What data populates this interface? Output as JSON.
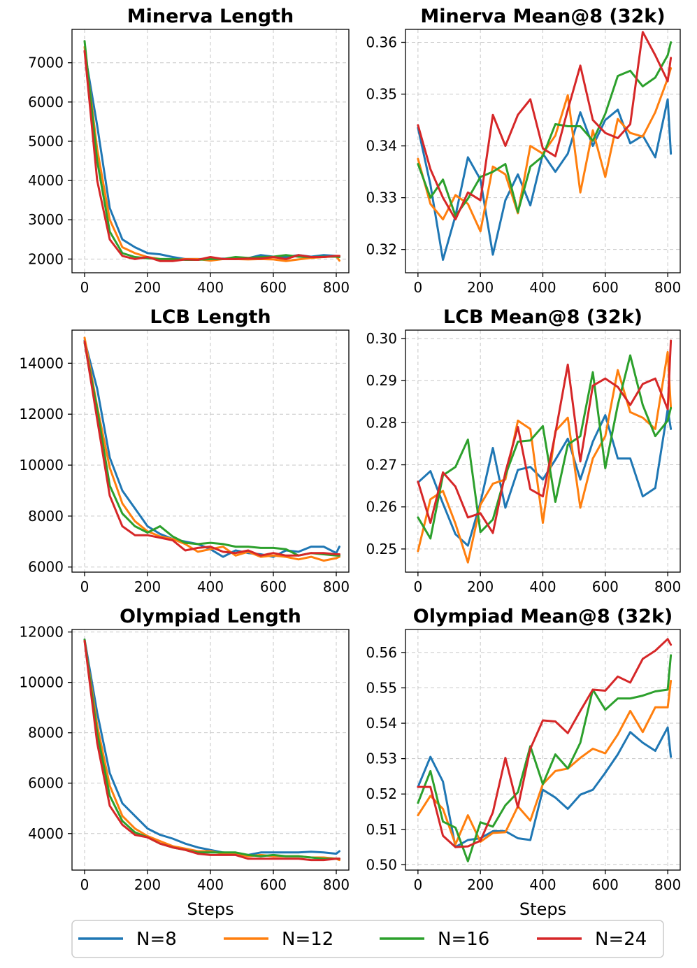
{
  "colors": {
    "N=8": "#1f77b4",
    "N=12": "#ff7f0e",
    "N=16": "#2ca02c",
    "N=24": "#d62728"
  },
  "legend": {
    "items": [
      "N=8",
      "N=12",
      "N=16",
      "N=24"
    ]
  },
  "chart_data": [
    {
      "type": "line",
      "title": "Minerva Length",
      "xlabel": "",
      "ylabel": "",
      "xlim": [
        -40,
        840
      ],
      "ylim": [
        1650,
        7850
      ],
      "xticks": [
        0,
        200,
        400,
        600,
        800
      ],
      "yticks": [
        2000,
        3000,
        4000,
        5000,
        6000,
        7000
      ],
      "grid": true,
      "x": [
        0,
        40,
        80,
        120,
        160,
        200,
        240,
        280,
        320,
        360,
        400,
        440,
        480,
        520,
        560,
        600,
        640,
        680,
        720,
        760,
        800,
        810
      ],
      "series": [
        {
          "name": "N=8",
          "values": [
            7300,
            5400,
            3300,
            2500,
            2300,
            2150,
            2120,
            2050,
            2000,
            2000,
            2000,
            2010,
            2000,
            2020,
            2100,
            2060,
            2050,
            2100,
            2060,
            2100,
            2080,
            2060
          ]
        },
        {
          "name": "N=12",
          "values": [
            7400,
            4800,
            3000,
            2300,
            2150,
            2050,
            2000,
            1980,
            2000,
            2000,
            1960,
            2000,
            2000,
            1990,
            2000,
            1990,
            1950,
            1990,
            2030,
            2050,
            2070,
            1960
          ]
        },
        {
          "name": "N=16",
          "values": [
            7550,
            4500,
            2700,
            2150,
            2050,
            2020,
            2000,
            2000,
            1980,
            1980,
            2000,
            2000,
            2050,
            2030,
            2050,
            2060,
            2100,
            2060,
            2050,
            2060,
            2060,
            2050
          ]
        },
        {
          "name": "N=24",
          "values": [
            7300,
            4000,
            2500,
            2080,
            2000,
            2050,
            1950,
            1950,
            1990,
            1980,
            2050,
            2000,
            2000,
            2010,
            2010,
            2050,
            2000,
            2100,
            2050,
            2050,
            2080,
            2080
          ]
        }
      ]
    },
    {
      "type": "line",
      "title": "Minerva Mean@8 (32k)",
      "xlabel": "",
      "ylabel": "",
      "xlim": [
        -40,
        840
      ],
      "ylim": [
        0.3155,
        0.3625
      ],
      "xticks": [
        0,
        200,
        400,
        600,
        800
      ],
      "yticks": [
        0.32,
        0.33,
        0.34,
        0.35,
        0.36
      ],
      "ytick_labels": [
        "0.32",
        "0.33",
        "0.34",
        "0.35",
        "0.36"
      ],
      "grid": true,
      "x": [
        0,
        40,
        80,
        120,
        160,
        200,
        240,
        280,
        320,
        360,
        400,
        440,
        480,
        520,
        560,
        600,
        640,
        680,
        720,
        760,
        800,
        810
      ],
      "series": [
        {
          "name": "N=8",
          "values": [
            0.3435,
            0.3325,
            0.318,
            0.3265,
            0.3378,
            0.3335,
            0.319,
            0.3295,
            0.3345,
            0.3285,
            0.3385,
            0.335,
            0.3385,
            0.3465,
            0.34,
            0.345,
            0.347,
            0.3405,
            0.342,
            0.3378,
            0.349,
            0.3385
          ]
        },
        {
          "name": "N=12",
          "values": [
            0.3375,
            0.3288,
            0.3258,
            0.3305,
            0.3288,
            0.3235,
            0.336,
            0.3345,
            0.327,
            0.34,
            0.3385,
            0.342,
            0.3498,
            0.331,
            0.343,
            0.334,
            0.3452,
            0.3425,
            0.3418,
            0.3465,
            0.353,
            0.355
          ]
        },
        {
          "name": "N=16",
          "values": [
            0.3365,
            0.33,
            0.3335,
            0.3265,
            0.3298,
            0.334,
            0.335,
            0.3365,
            0.3272,
            0.336,
            0.338,
            0.3442,
            0.3438,
            0.3438,
            0.341,
            0.3462,
            0.3535,
            0.3545,
            0.3515,
            0.3532,
            0.3575,
            0.36
          ]
        },
        {
          "name": "N=24",
          "values": [
            0.344,
            0.3355,
            0.33,
            0.3258,
            0.331,
            0.3295,
            0.346,
            0.34,
            0.346,
            0.349,
            0.3395,
            0.338,
            0.347,
            0.3555,
            0.345,
            0.3425,
            0.3415,
            0.3442,
            0.362,
            0.3575,
            0.3525,
            0.357
          ]
        }
      ]
    },
    {
      "type": "line",
      "title": "LCB Length",
      "xlabel": "",
      "ylabel": "",
      "xlim": [
        -40,
        840
      ],
      "ylim": [
        5800,
        15300
      ],
      "xticks": [
        0,
        200,
        400,
        600,
        800
      ],
      "yticks": [
        6000,
        8000,
        10000,
        12000,
        14000
      ],
      "grid": true,
      "x": [
        0,
        40,
        80,
        120,
        160,
        200,
        240,
        280,
        320,
        360,
        400,
        440,
        480,
        520,
        560,
        600,
        640,
        680,
        720,
        760,
        800,
        810
      ],
      "series": [
        {
          "name": "N=8",
          "values": [
            14900,
            13000,
            10300,
            9000,
            8300,
            7600,
            7300,
            7100,
            7000,
            6900,
            6700,
            6400,
            6650,
            6550,
            6500,
            6400,
            6650,
            6600,
            6800,
            6800,
            6550,
            6800
          ]
        },
        {
          "name": "N=12",
          "values": [
            15000,
            12300,
            9900,
            8500,
            7800,
            7400,
            7200,
            7100,
            6900,
            6600,
            6700,
            6800,
            6450,
            6600,
            6400,
            6450,
            6400,
            6300,
            6400,
            6250,
            6350,
            6400
          ]
        },
        {
          "name": "N=16",
          "values": [
            14800,
            12200,
            9200,
            8100,
            7600,
            7350,
            7600,
            7200,
            6950,
            6900,
            6950,
            6900,
            6800,
            6800,
            6750,
            6750,
            6700,
            6450,
            6550,
            6500,
            6450,
            6450
          ]
        },
        {
          "name": "N=24",
          "values": [
            14850,
            11800,
            8800,
            7600,
            7250,
            7250,
            7150,
            7050,
            6650,
            6750,
            6800,
            6600,
            6550,
            6650,
            6450,
            6550,
            6450,
            6450,
            6550,
            6550,
            6500,
            6500
          ]
        }
      ]
    },
    {
      "type": "line",
      "title": "LCB Mean@8 (32k)",
      "xlabel": "",
      "ylabel": "",
      "xlim": [
        -40,
        840
      ],
      "ylim": [
        0.2445,
        0.302
      ],
      "xticks": [
        0,
        200,
        400,
        600,
        800
      ],
      "yticks": [
        0.25,
        0.26,
        0.27,
        0.28,
        0.29,
        0.3
      ],
      "ytick_labels": [
        "0.25",
        "0.26",
        "0.27",
        "0.28",
        "0.29",
        "0.30"
      ],
      "grid": true,
      "x": [
        0,
        40,
        80,
        120,
        160,
        200,
        240,
        280,
        320,
        360,
        400,
        440,
        480,
        520,
        560,
        600,
        640,
        680,
        720,
        760,
        800,
        810
      ],
      "series": [
        {
          "name": "N=8",
          "values": [
            0.2658,
            0.2685,
            0.2608,
            0.2535,
            0.2508,
            0.261,
            0.274,
            0.2598,
            0.2688,
            0.2695,
            0.2665,
            0.2712,
            0.2762,
            0.2665,
            0.2755,
            0.2818,
            0.2715,
            0.2715,
            0.2625,
            0.2645,
            0.2832,
            0.2785
          ]
        },
        {
          "name": "N=12",
          "values": [
            0.2495,
            0.2618,
            0.2638,
            0.256,
            0.2468,
            0.2605,
            0.2655,
            0.2665,
            0.2805,
            0.2785,
            0.2562,
            0.278,
            0.2812,
            0.2598,
            0.2715,
            0.2768,
            0.2925,
            0.2825,
            0.2812,
            0.2785,
            0.2968,
            0.2835
          ]
        },
        {
          "name": "N=16",
          "values": [
            0.2575,
            0.2525,
            0.2675,
            0.2695,
            0.276,
            0.254,
            0.257,
            0.2675,
            0.2755,
            0.2758,
            0.2792,
            0.2612,
            0.2748,
            0.2768,
            0.292,
            0.2692,
            0.2842,
            0.296,
            0.2842,
            0.2768,
            0.2805,
            0.2835
          ]
        },
        {
          "name": "N=24",
          "values": [
            0.266,
            0.2562,
            0.2682,
            0.2648,
            0.2575,
            0.2585,
            0.2538,
            0.2682,
            0.279,
            0.2642,
            0.2625,
            0.2775,
            0.2938,
            0.2708,
            0.2888,
            0.2905,
            0.2885,
            0.2842,
            0.2892,
            0.2905,
            0.2832,
            0.2995
          ]
        }
      ]
    },
    {
      "type": "line",
      "title": "Olympiad Length",
      "xlabel": "Steps",
      "ylabel": "",
      "xlim": [
        -40,
        840
      ],
      "ylim": [
        2550,
        12100
      ],
      "xticks": [
        0,
        200,
        400,
        600,
        800
      ],
      "yticks": [
        4000,
        6000,
        8000,
        10000,
        12000
      ],
      "grid": true,
      "x": [
        0,
        40,
        80,
        120,
        160,
        200,
        240,
        280,
        320,
        360,
        400,
        440,
        480,
        520,
        560,
        600,
        640,
        680,
        720,
        760,
        800,
        810
      ],
      "series": [
        {
          "name": "N=8",
          "values": [
            11700,
            8800,
            6400,
            5200,
            4700,
            4200,
            3950,
            3800,
            3600,
            3450,
            3350,
            3250,
            3200,
            3150,
            3250,
            3250,
            3250,
            3250,
            3280,
            3250,
            3200,
            3300
          ]
        },
        {
          "name": "N=12",
          "values": [
            11650,
            8300,
            5900,
            4700,
            4200,
            3900,
            3700,
            3500,
            3400,
            3300,
            3300,
            3200,
            3200,
            3100,
            3150,
            3100,
            3100,
            3100,
            3050,
            3050,
            3000,
            2950
          ]
        },
        {
          "name": "N=16",
          "values": [
            11700,
            8000,
            5500,
            4500,
            4050,
            3850,
            3600,
            3450,
            3350,
            3250,
            3250,
            3250,
            3250,
            3150,
            3100,
            3150,
            3100,
            3100,
            3050,
            3000,
            3000,
            3000
          ]
        },
        {
          "name": "N=24",
          "values": [
            11650,
            7600,
            5100,
            4350,
            3950,
            3850,
            3600,
            3450,
            3350,
            3200,
            3150,
            3150,
            3150,
            3000,
            3000,
            3000,
            3000,
            3000,
            2950,
            2950,
            3000,
            3000
          ]
        }
      ]
    },
    {
      "type": "line",
      "title": "Olympiad Mean@8 (32k)",
      "xlabel": "Steps",
      "ylabel": "",
      "xlim": [
        -40,
        840
      ],
      "ylim": [
        0.4985,
        0.5665
      ],
      "xticks": [
        0,
        200,
        400,
        600,
        800
      ],
      "yticks": [
        0.5,
        0.51,
        0.52,
        0.53,
        0.54,
        0.55,
        0.56
      ],
      "ytick_labels": [
        "0.50",
        "0.51",
        "0.52",
        "0.53",
        "0.54",
        "0.55",
        "0.56"
      ],
      "grid": true,
      "x": [
        0,
        40,
        80,
        120,
        160,
        200,
        240,
        280,
        320,
        360,
        400,
        440,
        480,
        520,
        560,
        600,
        640,
        680,
        720,
        760,
        800,
        810
      ],
      "series": [
        {
          "name": "N=8",
          "values": [
            0.522,
            0.5305,
            0.5235,
            0.505,
            0.507,
            0.5075,
            0.5095,
            0.5095,
            0.5075,
            0.507,
            0.5212,
            0.519,
            0.5158,
            0.5198,
            0.5212,
            0.526,
            0.5312,
            0.5375,
            0.5345,
            0.5322,
            0.5388,
            0.5305
          ]
        },
        {
          "name": "N=12",
          "values": [
            0.514,
            0.5195,
            0.5158,
            0.5058,
            0.514,
            0.5065,
            0.509,
            0.5092,
            0.5165,
            0.5125,
            0.5228,
            0.5265,
            0.5272,
            0.5302,
            0.5328,
            0.5315,
            0.5368,
            0.5435,
            0.5375,
            0.5445,
            0.5445,
            0.552
          ]
        },
        {
          "name": "N=16",
          "values": [
            0.5175,
            0.5265,
            0.5122,
            0.5105,
            0.501,
            0.512,
            0.5108,
            0.5168,
            0.5205,
            0.5335,
            0.5228,
            0.5312,
            0.5272,
            0.5345,
            0.5495,
            0.5438,
            0.547,
            0.547,
            0.5478,
            0.549,
            0.5495,
            0.5592
          ]
        },
        {
          "name": "N=24",
          "values": [
            0.522,
            0.522,
            0.5082,
            0.505,
            0.5052,
            0.5068,
            0.5148,
            0.5302,
            0.5162,
            0.5328,
            0.5408,
            0.5405,
            0.5372,
            0.5435,
            0.5495,
            0.5492,
            0.5532,
            0.5515,
            0.5582,
            0.5605,
            0.5638,
            0.5622
          ]
        }
      ]
    }
  ]
}
